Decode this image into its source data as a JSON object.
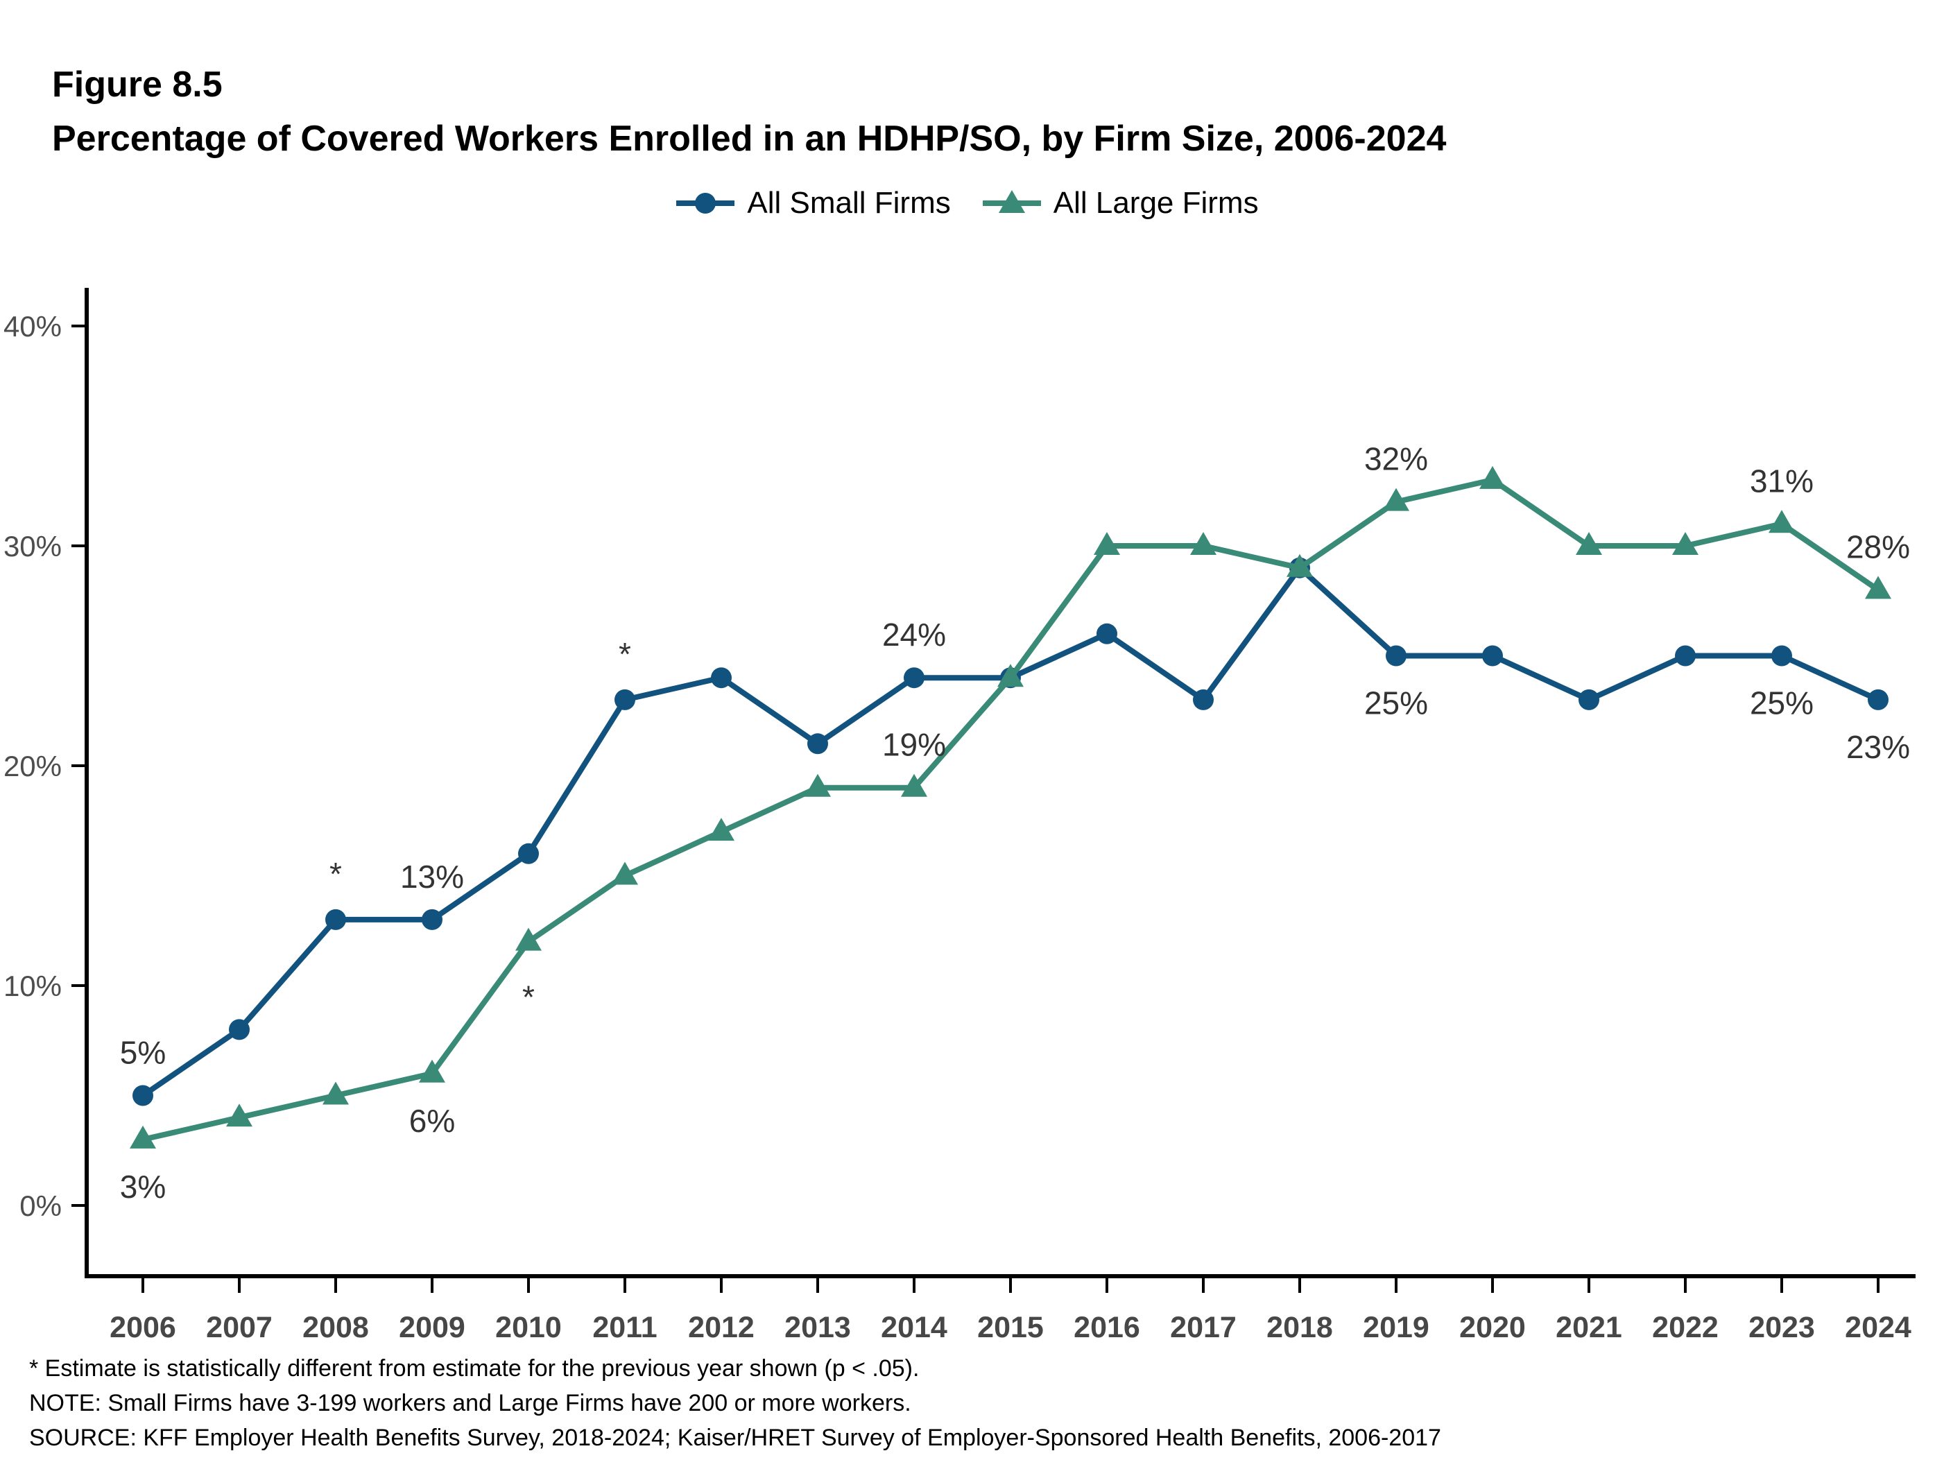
{
  "figure": {
    "label": "Figure 8.5",
    "title": "Percentage of Covered Workers Enrolled in an HDHP/SO, by Firm Size, 2006-2024"
  },
  "legend": [
    {
      "label": "All Small Firms",
      "color": "#11527F",
      "marker": "circle"
    },
    {
      "label": "All Large Firms",
      "color": "#3A8A78",
      "marker": "triangle"
    }
  ],
  "chart_data": {
    "type": "line",
    "title": "Percentage of Covered Workers Enrolled in an HDHP/SO, by Firm Size, 2006-2024",
    "xlabel": "",
    "ylabel": "",
    "ylim": [
      0,
      42
    ],
    "grid": false,
    "legend_position": "top-center",
    "x": [
      2006,
      2007,
      2008,
      2009,
      2010,
      2011,
      2012,
      2013,
      2014,
      2015,
      2016,
      2017,
      2018,
      2019,
      2020,
      2021,
      2022,
      2023,
      2024
    ],
    "yticks": [
      "0%",
      "10%",
      "20%",
      "30%",
      "40%"
    ],
    "series": [
      {
        "name": "All Small Firms",
        "color": "#11527F",
        "marker": "circle",
        "values": [
          5,
          8,
          13,
          13,
          16,
          23,
          24,
          21,
          24,
          24,
          26,
          23,
          29,
          25,
          25,
          23,
          25,
          25,
          23
        ]
      },
      {
        "name": "All Large Firms",
        "color": "#3A8A78",
        "marker": "triangle",
        "values": [
          3,
          4,
          5,
          6,
          12,
          15,
          17,
          19,
          19,
          24,
          30,
          30,
          29,
          32,
          33,
          30,
          30,
          31,
          28
        ]
      }
    ],
    "point_labels": [
      {
        "series": 0,
        "year": 2006,
        "text": "5%",
        "position": "above"
      },
      {
        "series": 1,
        "year": 2006,
        "text": "3%",
        "position": "below"
      },
      {
        "series": 0,
        "year": 2009,
        "text": "13%",
        "position": "above"
      },
      {
        "series": 1,
        "year": 2009,
        "text": "6%",
        "position": "below"
      },
      {
        "series": 0,
        "year": 2014,
        "text": "24%",
        "position": "above"
      },
      {
        "series": 1,
        "year": 2014,
        "text": "19%",
        "position": "above"
      },
      {
        "series": 0,
        "year": 2019,
        "text": "25%",
        "position": "below"
      },
      {
        "series": 1,
        "year": 2019,
        "text": "32%",
        "position": "above"
      },
      {
        "series": 0,
        "year": 2023,
        "text": "25%",
        "position": "below"
      },
      {
        "series": 1,
        "year": 2023,
        "text": "31%",
        "position": "above"
      },
      {
        "series": 0,
        "year": 2024,
        "text": "23%",
        "position": "below"
      },
      {
        "series": 1,
        "year": 2024,
        "text": "28%",
        "position": "above"
      }
    ],
    "asterisks": [
      {
        "series": 0,
        "year": 2008,
        "text": "*",
        "position": "above"
      },
      {
        "series": 0,
        "year": 2011,
        "text": "*",
        "position": "above"
      },
      {
        "series": 1,
        "year": 2010,
        "text": "*",
        "position": "below"
      }
    ]
  },
  "footnotes": [
    "* Estimate is statistically different from estimate for the previous year shown (p < .05).",
    "NOTE: Small Firms have 3-199 workers and Large Firms have 200 or more workers.",
    "SOURCE: KFF Employer Health Benefits Survey, 2018-2024; Kaiser/HRET Survey of Employer-Sponsored Health Benefits, 2006-2017"
  ]
}
